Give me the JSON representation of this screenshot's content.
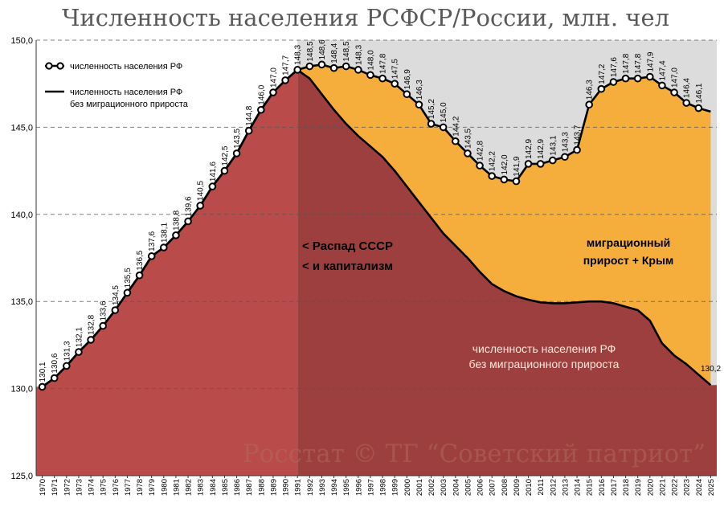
{
  "chart_data": {
    "type": "area",
    "title": "Численность населения РСФСР/России, млн. чел",
    "ylim": [
      125,
      150
    ],
    "yticks": [
      "125,0",
      "130,0",
      "135,0",
      "140,0",
      "145,0",
      "150,0"
    ],
    "x": [
      1970,
      1971,
      1972,
      1973,
      1974,
      1975,
      1976,
      1977,
      1978,
      1979,
      1980,
      1981,
      1982,
      1983,
      1984,
      1985,
      1986,
      1987,
      1988,
      1989,
      1990,
      1991,
      1992,
      1993,
      1994,
      1995,
      1996,
      1997,
      1998,
      1999,
      2000,
      2001,
      2002,
      2003,
      2004,
      2005,
      2006,
      2007,
      2008,
      2009,
      2010,
      2011,
      2012,
      2013,
      2014,
      2015,
      2016,
      2017,
      2018,
      2019,
      2020,
      2021,
      2022,
      2023,
      2024,
      2025
    ],
    "series": [
      {
        "name": "численность населения РФ",
        "values": [
          130.1,
          130.6,
          131.3,
          132.1,
          132.8,
          133.6,
          134.5,
          135.5,
          136.5,
          137.6,
          138.1,
          138.8,
          139.6,
          140.5,
          141.6,
          142.5,
          143.5,
          144.8,
          146.0,
          147.0,
          147.7,
          148.3,
          148.5,
          148.6,
          148.4,
          148.5,
          148.3,
          148.0,
          147.8,
          147.5,
          146.9,
          146.3,
          145.2,
          145.0,
          144.2,
          143.5,
          142.8,
          142.2,
          142.0,
          141.9,
          142.9,
          142.9,
          143.1,
          143.3,
          143.7,
          146.3,
          147.2,
          147.6,
          147.8,
          147.8,
          147.9,
          147.4,
          147.0,
          146.4,
          146.1,
          145.9
        ],
        "labels": [
          "130,1",
          "130,6",
          "131,3",
          "132,1",
          "132,8",
          "133,6",
          "134,5",
          "135,5",
          "136,5",
          "137,6",
          "138,1",
          "138,8",
          "139,6",
          "140,5",
          "141,6",
          "142,5",
          "143,5",
          "144,8",
          "146,0",
          "147,0",
          "147,7",
          "148,3",
          "148,5",
          "148,6",
          "148,4",
          "148,5",
          "148,3",
          "148,0",
          "147,8",
          "147,5",
          "146,9",
          "146,3",
          "145,2",
          "145,0",
          "144,2",
          "143,5",
          "142,8",
          "142,2",
          "142,0",
          "141,9",
          "142,9",
          "142,9",
          "143,1",
          "143,3",
          "143,7",
          "146,3",
          "147,2",
          "147,6",
          "147,8",
          "147,8",
          "147,9",
          "147,4",
          "147,0",
          "146,4",
          "146,1",
          ""
        ]
      },
      {
        "name": "численность населения РФ без миграционного прироста",
        "values": [
          130.1,
          130.6,
          131.3,
          132.1,
          132.8,
          133.6,
          134.5,
          135.5,
          136.5,
          137.6,
          138.1,
          138.8,
          139.6,
          140.5,
          141.6,
          142.5,
          143.5,
          144.8,
          146.0,
          147.0,
          147.7,
          148.3,
          147.8,
          146.9,
          146.0,
          145.2,
          144.5,
          143.9,
          143.3,
          142.5,
          141.6,
          140.7,
          139.8,
          138.9,
          138.2,
          137.5,
          136.7,
          136.0,
          135.6,
          135.3,
          135.1,
          134.95,
          134.9,
          134.9,
          134.95,
          135.0,
          135.0,
          134.9,
          134.7,
          134.5,
          133.9,
          132.6,
          131.9,
          131.4,
          130.8,
          130.2
        ],
        "end_label": "130,2"
      }
    ],
    "legend": {
      "entries": [
        "численность населения РФ",
        "численность населения РФ",
        "без миграционного прироста"
      ]
    },
    "annotations": {
      "collapse_line1": "< Распад СССР",
      "collapse_line2": "< и капитализм",
      "migration_line1": "миграционный",
      "migration_line2": "прирост + Крым",
      "natural_line1": "численность населения РФ",
      "natural_line2": "без миграционного прироста"
    },
    "watermark": "Росстат © ТГ “Советский патриот”",
    "colors": {
      "post1991_bg": "#dcdcdc",
      "natural_area": "#b94c4a",
      "natural_area_post": "#9d3f3e",
      "migration_area": "#f5ad3b",
      "line": "#000000"
    }
  }
}
